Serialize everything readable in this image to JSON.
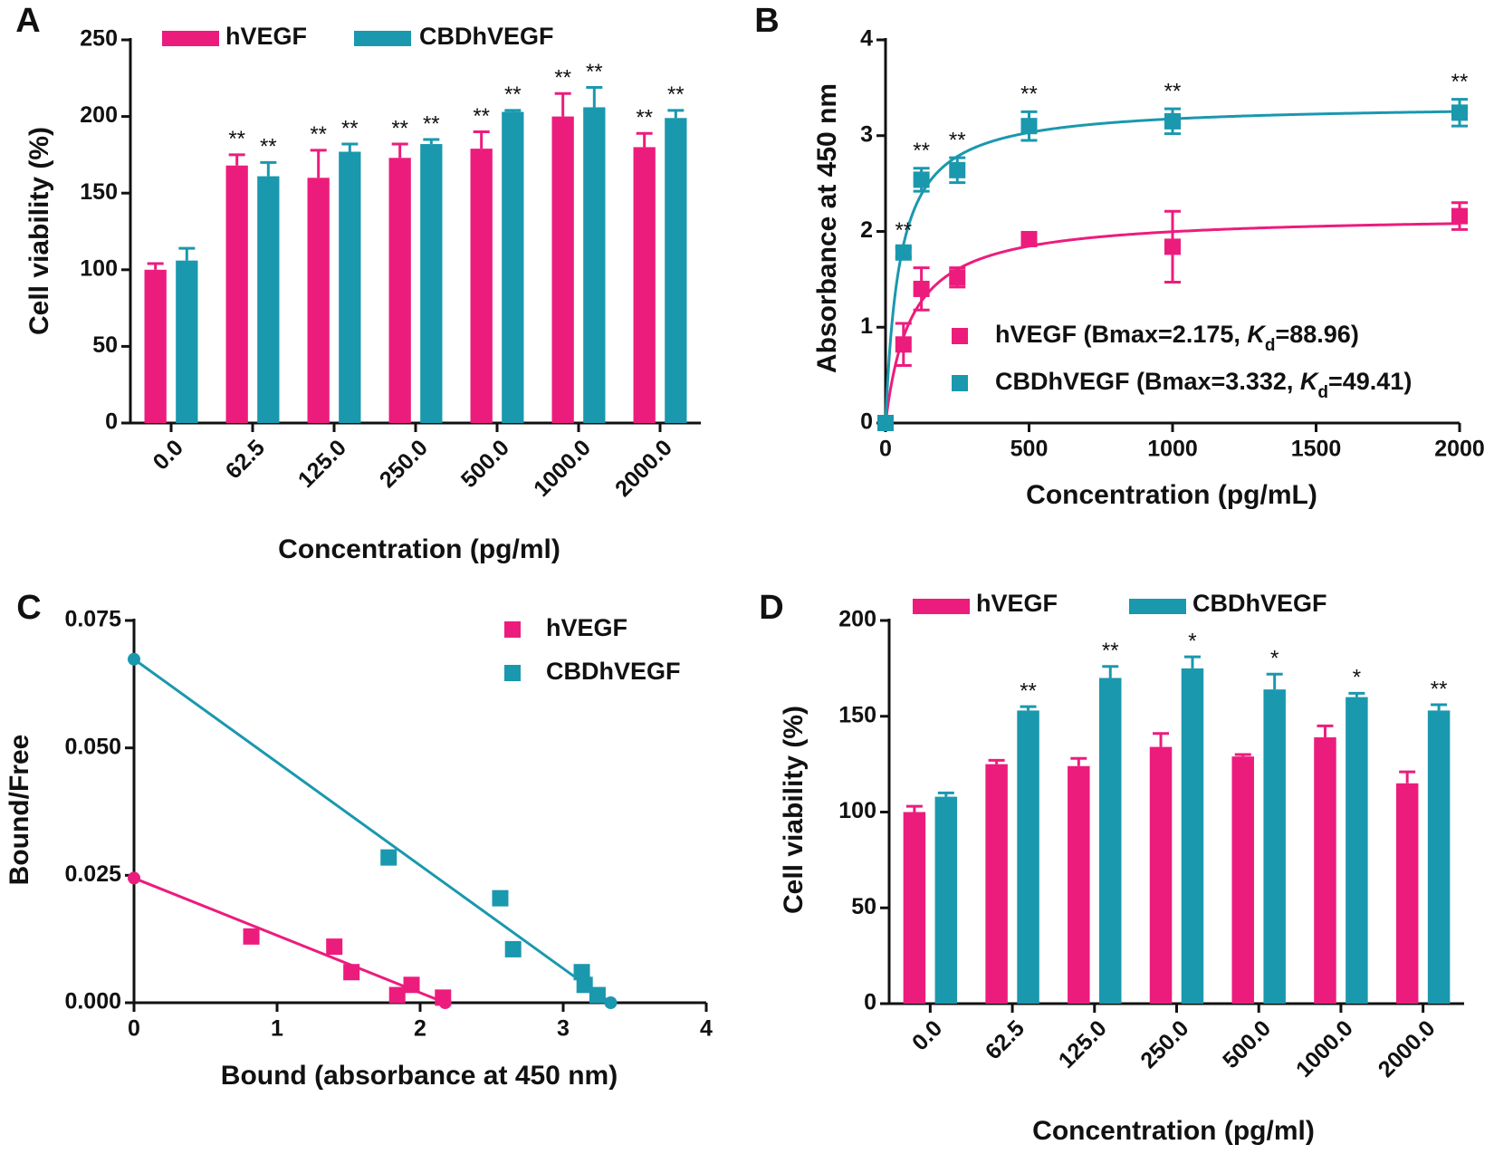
{
  "chart_data": [
    {
      "type": "bar",
      "panel_label": "A",
      "categories": [
        "0.0",
        "62.5",
        "125.0",
        "250.0",
        "500.0",
        "1000.0",
        "2000.0"
      ],
      "series": [
        {
          "name": "hVEGF",
          "color": "#ec1c7d",
          "values": [
            100,
            168,
            160,
            173,
            179,
            200,
            180
          ],
          "errors": [
            4,
            7,
            18,
            9,
            11,
            15,
            9
          ],
          "significance": [
            null,
            "**",
            "**",
            "**",
            "**",
            "**",
            "**"
          ]
        },
        {
          "name": "CBDhVEGF",
          "color": "#1a98ae",
          "values": [
            106,
            161,
            177,
            182,
            203,
            206,
            199
          ],
          "errors": [
            8,
            9,
            5,
            3,
            1,
            13,
            5
          ],
          "significance": [
            null,
            "**",
            "**",
            "**",
            "**",
            "**",
            "**"
          ]
        }
      ],
      "ylim": [
        0,
        250
      ],
      "yticks": [
        0,
        50,
        100,
        150,
        200,
        250
      ],
      "x_label": "Concentration (pg/ml)",
      "y_label": "Cell viability (%)"
    },
    {
      "type": "scatter",
      "panel_label": "B",
      "x": [
        0,
        62.5,
        125,
        250,
        500,
        1000,
        2000
      ],
      "series": [
        {
          "label_parts": [
            "hVEGF (Bmax=2.175, ",
            "K",
            "d",
            "=88.96)"
          ],
          "color": "#ec1c7d",
          "values": [
            0,
            0.82,
            1.4,
            1.52,
            1.92,
            1.84,
            2.16
          ],
          "errors": [
            0,
            0.22,
            0.22,
            0.1,
            0.05,
            0.37,
            0.14
          ],
          "bmax": 2.175,
          "kd": 88.96
        },
        {
          "label_parts": [
            "CBDhVEGF (Bmax=3.332, ",
            "K",
            "d",
            "=49.41)"
          ],
          "color": "#1a98ae",
          "values": [
            0,
            1.78,
            2.54,
            2.64,
            3.1,
            3.15,
            3.24
          ],
          "errors": [
            0,
            0.05,
            0.12,
            0.13,
            0.15,
            0.13,
            0.14
          ],
          "bmax": 3.332,
          "kd": 49.41,
          "significance": [
            null,
            "**",
            "**",
            "**",
            "**",
            "**",
            "**"
          ]
        }
      ],
      "xlim": [
        0,
        2000
      ],
      "xticks": [
        0,
        500,
        1000,
        1500,
        2000
      ],
      "ylim": [
        0,
        4
      ],
      "yticks": [
        0,
        1,
        2,
        3,
        4
      ],
      "x_label": "Concentration (pg/mL)",
      "y_label": "Absorbance at 450 nm"
    },
    {
      "type": "scatter",
      "panel_label": "C",
      "series": [
        {
          "name": "hVEGF",
          "color": "#ec1c7d",
          "x": [
            0.82,
            1.4,
            1.52,
            1.84,
            1.94,
            2.16
          ],
          "values": [
            0.013,
            0.011,
            0.006,
            0.0015,
            0.0035,
            0.001
          ],
          "line_x": [
            0,
            2.175
          ],
          "line_y": [
            0.02445,
            0
          ]
        },
        {
          "name": "CBDhVEGF",
          "color": "#1a98ae",
          "x": [
            1.78,
            2.56,
            2.65,
            3.13,
            3.15,
            3.24
          ],
          "values": [
            0.0285,
            0.0205,
            0.0105,
            0.006,
            0.0035,
            0.0015
          ],
          "line_x": [
            0,
            3.332
          ],
          "line_y": [
            0.0674,
            0
          ]
        }
      ],
      "xlim": [
        0,
        4
      ],
      "xticks": [
        0,
        1,
        2,
        3,
        4
      ],
      "ylim": [
        0,
        0.075
      ],
      "yticks": [
        {
          "value": 0,
          "label": "0.000"
        },
        {
          "value": 0.025,
          "label": "0.025"
        },
        {
          "value": 0.05,
          "label": "0.050"
        },
        {
          "value": 0.075,
          "label": "0.075"
        }
      ],
      "x_label": "Bound (absorbance at 450 nm)",
      "y_label": "Bound/Free"
    },
    {
      "type": "bar",
      "panel_label": "D",
      "categories": [
        "0.0",
        "62.5",
        "125.0",
        "250.0",
        "500.0",
        "1000.0",
        "2000.0"
      ],
      "series": [
        {
          "name": "hVEGF",
          "color": "#ec1c7d",
          "values": [
            100,
            125,
            124,
            134,
            129,
            139,
            115
          ],
          "errors": [
            3,
            2,
            4,
            7,
            1,
            6,
            6
          ]
        },
        {
          "name": "CBDhVEGF",
          "color": "#1a98ae",
          "values": [
            108,
            153,
            170,
            175,
            164,
            160,
            153
          ],
          "errors": [
            2,
            2,
            6,
            6,
            8,
            2,
            3
          ],
          "significance": [
            null,
            "**",
            "**",
            "*",
            "*",
            "*",
            "**"
          ]
        }
      ],
      "ylim": [
        0,
        200
      ],
      "yticks": [
        0,
        50,
        100,
        150,
        200
      ],
      "x_label": "Concentration (pg/ml)",
      "y_label": "Cell viability (%)"
    }
  ]
}
